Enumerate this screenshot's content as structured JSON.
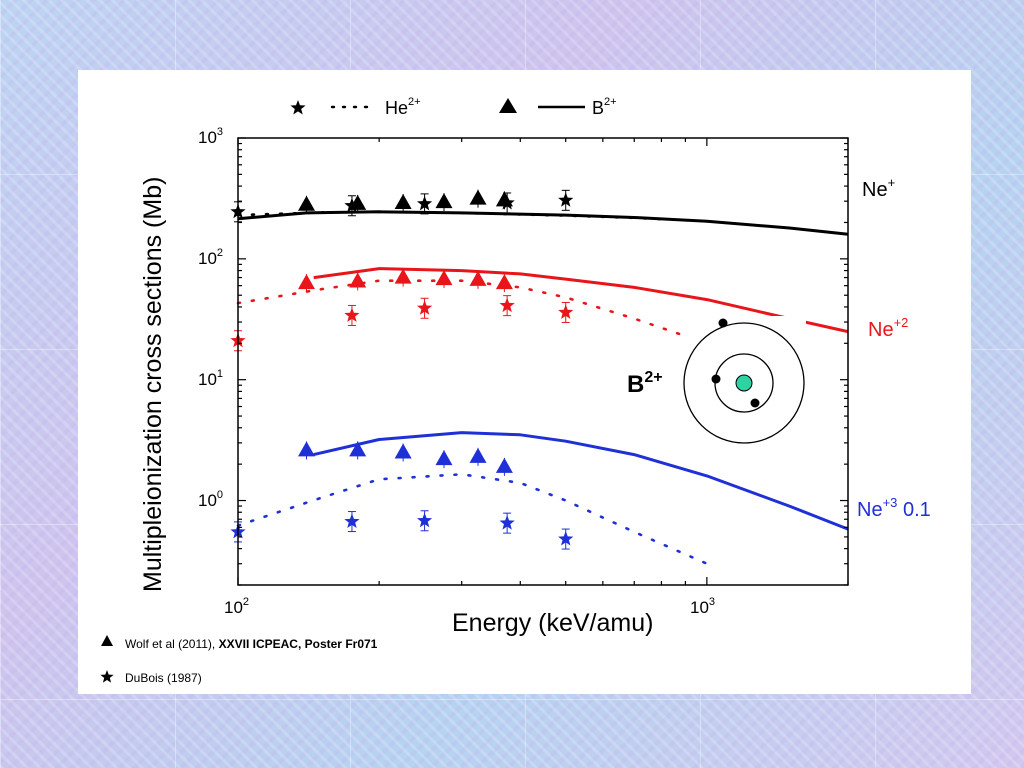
{
  "slide": {
    "background_colors": [
      "#bcd4f3",
      "#cfc4ee"
    ]
  },
  "legend": {
    "he_label": "He",
    "he_sup": "2+",
    "b_label": "B",
    "b_sup": "2+"
  },
  "ion_diagram": {
    "label": "B",
    "label_sup": "2+",
    "nucleus_color": "#2fd3a3"
  },
  "footnotes": {
    "wolf_text": "Wolf et al (2011), ",
    "wolf_bold": "XXVII ICPEAC, Poster Fr071",
    "dubois_text": "DuBois (1987)"
  },
  "chart_data": {
    "type": "scatter",
    "xlabel": "Energy (keV/amu)",
    "ylabel": "Multipleionization cross sections (Mb)",
    "xscale": "log",
    "yscale": "log",
    "xlim": [
      100,
      2000
    ],
    "ylim": [
      0.2,
      1000
    ],
    "x_ticks": [
      {
        "base": "10",
        "exp": "2"
      },
      {
        "base": "10",
        "exp": "3"
      }
    ],
    "y_ticks": [
      {
        "base": "10",
        "exp": "0"
      },
      {
        "base": "10",
        "exp": "1"
      },
      {
        "base": "10",
        "exp": "2"
      },
      {
        "base": "10",
        "exp": "3"
      }
    ],
    "legend_position": "top",
    "groups": [
      {
        "label": "Ne",
        "label_sup": "+",
        "label_suffix": "",
        "color": "#000000",
        "b_curve": {
          "x": [
            100,
            140,
            200,
            300,
            500,
            700,
            1000,
            1500,
            2000
          ],
          "y": [
            215,
            240,
            245,
            240,
            230,
            220,
            205,
            180,
            160
          ]
        },
        "he_curve": {
          "x": [
            100,
            150,
            200,
            300,
            500,
            700,
            1000
          ],
          "y": [
            230,
            242,
            245,
            240,
            228,
            218,
            205
          ]
        },
        "b_points": {
          "x": [
            140,
            180,
            225,
            275,
            325,
            370
          ],
          "y": [
            280,
            285,
            290,
            295,
            315,
            305
          ]
        },
        "he_points": {
          "x": [
            100,
            175,
            250,
            375,
            500
          ],
          "y": [
            245,
            275,
            285,
            290,
            305
          ]
        }
      },
      {
        "label": "Ne",
        "label_sup": "+2",
        "label_suffix": "",
        "color": "#e8161b",
        "b_curve": {
          "x": [
            145,
            200,
            300,
            400,
            500,
            700,
            1000,
            1500,
            2000
          ],
          "y": [
            70,
            83,
            80,
            75,
            68,
            58,
            46,
            32,
            25
          ]
        },
        "he_curve": {
          "x": [
            100,
            150,
            200,
            300,
            400,
            500,
            700,
            1000
          ],
          "y": [
            43,
            56,
            66,
            66,
            58,
            48,
            32,
            20
          ]
        },
        "b_points": {
          "x": [
            140,
            180,
            225,
            275,
            325,
            370
          ],
          "y": [
            63,
            65,
            70,
            68,
            67,
            63
          ]
        },
        "he_points": {
          "x": [
            100,
            175,
            250,
            375,
            500
          ],
          "y": [
            21,
            34,
            39,
            41,
            36
          ]
        }
      },
      {
        "label": "Ne",
        "label_sup": "+3",
        "label_suffix": " 0.1",
        "color": "#1f30d6",
        "b_curve": {
          "x": [
            145,
            200,
            300,
            400,
            500,
            700,
            1000,
            1500,
            2000
          ],
          "y": [
            2.4,
            3.2,
            3.65,
            3.5,
            3.1,
            2.4,
            1.6,
            0.9,
            0.58
          ]
        },
        "he_curve": {
          "x": [
            100,
            150,
            200,
            300,
            400,
            500,
            700,
            1000
          ],
          "y": [
            0.62,
            1.05,
            1.5,
            1.65,
            1.4,
            1.0,
            0.55,
            0.3
          ]
        },
        "b_points": {
          "x": [
            140,
            180,
            225,
            275,
            325,
            370
          ],
          "y": [
            2.6,
            2.6,
            2.5,
            2.2,
            2.3,
            1.9
          ]
        },
        "he_points": {
          "x": [
            100,
            175,
            250,
            375,
            500
          ],
          "y": [
            0.55,
            0.67,
            0.68,
            0.65,
            0.48
          ]
        }
      }
    ]
  }
}
